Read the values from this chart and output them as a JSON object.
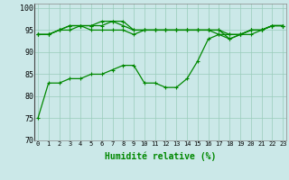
{
  "title": "",
  "xlabel": "Humidité relative (%)",
  "ylabel": "",
  "bg_color": "#cbe8e8",
  "grid_color": "#99ccbb",
  "line_color": "#008800",
  "ylim": [
    70,
    101
  ],
  "xlim": [
    -0.3,
    23.3
  ],
  "yticks": [
    70,
    75,
    80,
    85,
    90,
    95,
    100
  ],
  "xticks": [
    0,
    1,
    2,
    3,
    4,
    5,
    6,
    7,
    8,
    9,
    10,
    11,
    12,
    13,
    14,
    15,
    16,
    17,
    18,
    19,
    20,
    21,
    22,
    23
  ],
  "series": [
    [
      75,
      83,
      83,
      84,
      84,
      85,
      85,
      86,
      87,
      87,
      83,
      83,
      82,
      82,
      84,
      88,
      93,
      94,
      93,
      94,
      94,
      95,
      96,
      96
    ],
    [
      94,
      94,
      95,
      95,
      96,
      95,
      95,
      95,
      95,
      94,
      95,
      95,
      95,
      95,
      95,
      95,
      95,
      94,
      94,
      94,
      95,
      95,
      96,
      96
    ],
    [
      94,
      94,
      95,
      96,
      96,
      96,
      96,
      97,
      97,
      95,
      95,
      95,
      95,
      95,
      95,
      95,
      95,
      95,
      93,
      94,
      95,
      95,
      96,
      96
    ],
    [
      94,
      94,
      95,
      96,
      96,
      96,
      97,
      97,
      96,
      95,
      95,
      95,
      95,
      95,
      95,
      95,
      95,
      95,
      94,
      94,
      95,
      95,
      96,
      96
    ]
  ]
}
